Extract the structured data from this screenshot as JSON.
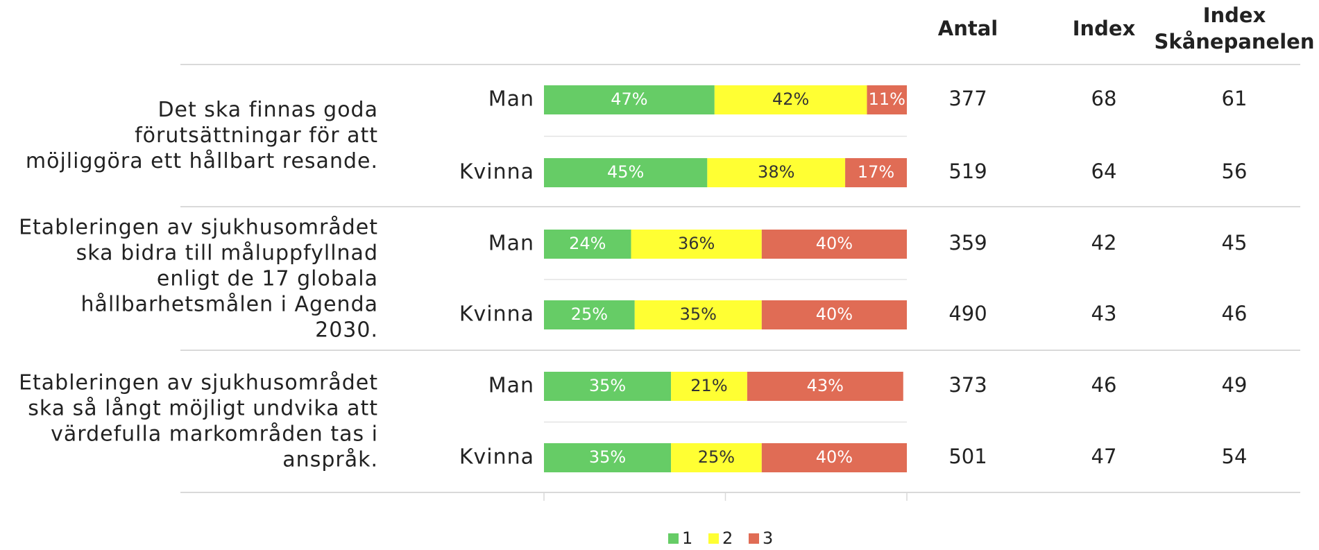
{
  "chart_data": {
    "type": "stacked-bar",
    "orientation": "horizontal",
    "groups": [
      [
        "Det ska finnas goda",
        "förutsättningar för att",
        "möjliggöra ett hållbart resande."
      ],
      [
        "Etableringen av sjukhusområdet",
        "ska bidra till måluppfyllnad",
        "enligt de 17 globala",
        "hållbarhetsmålen i Agenda",
        "2030."
      ],
      [
        "Etableringen av sjukhusområdet",
        "ska så långt möjligt undvika att",
        "värdefulla markområden tas i",
        "anspråk."
      ]
    ],
    "categories": [
      "Man",
      "Kvinna",
      "Man",
      "Kvinna",
      "Man",
      "Kvinna"
    ],
    "series": [
      {
        "name": "1",
        "color": "#66cc66",
        "values": [
          47,
          45,
          24,
          25,
          35,
          35
        ],
        "value_labels": [
          "47%",
          "45%",
          "24%",
          "25%",
          "35%",
          "35%"
        ]
      },
      {
        "name": "2",
        "color": "#ffff33",
        "values": [
          42,
          38,
          36,
          35,
          21,
          25
        ],
        "value_labels": [
          "42%",
          "38%",
          "36%",
          "35%",
          "21%",
          "25%"
        ]
      },
      {
        "name": "3",
        "color": "#e06c55",
        "values": [
          11,
          17,
          40,
          40,
          43,
          40
        ],
        "value_labels": [
          "11%",
          "17%",
          "40%",
          "40%",
          "43%",
          "40%"
        ]
      }
    ],
    "xlim": [
      0,
      100
    ],
    "xticks": [
      0,
      50,
      100
    ],
    "columns": [
      {
        "header": [
          "Antal"
        ],
        "values": [
          377,
          519,
          359,
          490,
          373,
          501
        ]
      },
      {
        "header": [
          "Index"
        ],
        "values": [
          68,
          64,
          42,
          43,
          46,
          47
        ]
      },
      {
        "header": [
          "Index",
          "Skånepanelen"
        ],
        "values": [
          61,
          56,
          45,
          46,
          49,
          54
        ]
      }
    ],
    "legend": "bottom"
  }
}
